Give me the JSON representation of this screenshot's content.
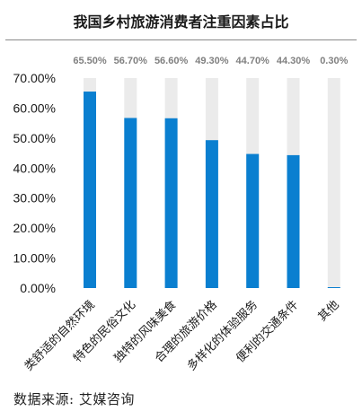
{
  "chart_data": {
    "type": "bar",
    "title": "我国乡村旅游消费者注重因素占比",
    "categories": [
      "类舒适的自然环境",
      "特色的民俗文化",
      "独特的风味美食",
      "合理的旅游价格",
      "多样化的体验服务",
      "便利的交通条件",
      "其他"
    ],
    "values": [
      65.5,
      56.7,
      56.6,
      49.3,
      44.7,
      44.3,
      0.3
    ],
    "value_labels": [
      "65.50%",
      "56.70%",
      "56.60%",
      "49.30%",
      "44.70%",
      "44.30%",
      "0.30%"
    ],
    "ylim": [
      0,
      70
    ],
    "yticks": [
      "0.00%",
      "10.00%",
      "20.00%",
      "30.00%",
      "40.00%",
      "50.00%",
      "60.00%",
      "70.00%"
    ],
    "xlabel": "",
    "ylabel": "",
    "grid": false,
    "colors": {
      "bar": "#0a7fd0",
      "track": "#ebebeb",
      "label": "#808080"
    }
  },
  "source_text": "数据来源: 艾媒咨询"
}
